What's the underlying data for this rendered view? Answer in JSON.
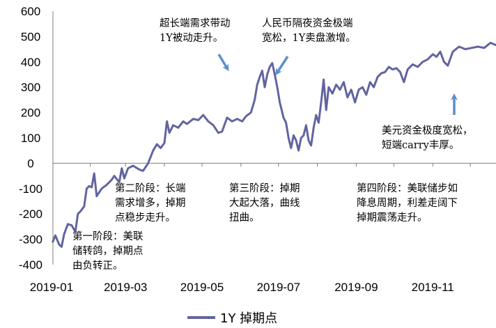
{
  "chart_data": {
    "type": "line",
    "title": "",
    "xlabel": "",
    "ylabel": "",
    "ylim": [
      -400,
      600
    ],
    "yticks": [
      "600",
      "500",
      "400",
      "300",
      "200",
      "100",
      "0",
      "-100",
      "-200",
      "-300",
      "-400"
    ],
    "xticks": [
      "2019-01",
      "2019-03",
      "2019-05",
      "2019-07",
      "2019-09",
      "2019-11"
    ],
    "grid": false,
    "legend_position": "bottom",
    "colors": {
      "series": "#6264a0",
      "arrow": "#5b8fcc",
      "axis": "#7f7f7f"
    },
    "series": [
      {
        "name": "1Y 掉期点",
        "points": [
          [
            "2019-01-02",
            -310
          ],
          [
            "2019-01-04",
            -285
          ],
          [
            "2019-01-07",
            -320
          ],
          [
            "2019-01-09",
            -330
          ],
          [
            "2019-01-11",
            -280
          ],
          [
            "2019-01-14",
            -240
          ],
          [
            "2019-01-17",
            -245
          ],
          [
            "2019-01-20",
            -270
          ],
          [
            "2019-01-22",
            -200
          ],
          [
            "2019-01-24",
            -190
          ],
          [
            "2019-01-27",
            -170
          ],
          [
            "2019-01-29",
            -100
          ],
          [
            "2019-01-31",
            -90
          ],
          [
            "2019-02-02",
            -95
          ],
          [
            "2019-02-04",
            -40
          ],
          [
            "2019-02-06",
            -130
          ],
          [
            "2019-02-10",
            -100
          ],
          [
            "2019-02-14",
            -85
          ],
          [
            "2019-02-18",
            -65
          ],
          [
            "2019-02-20",
            -50
          ],
          [
            "2019-02-24",
            -75
          ],
          [
            "2019-02-26",
            -20
          ],
          [
            "2019-02-28",
            -60
          ],
          [
            "2019-03-03",
            -20
          ],
          [
            "2019-03-07",
            -10
          ],
          [
            "2019-03-12",
            -25
          ],
          [
            "2019-03-15",
            -30
          ],
          [
            "2019-03-19",
            0
          ],
          [
            "2019-03-23",
            50
          ],
          [
            "2019-03-26",
            75
          ],
          [
            "2019-03-29",
            60
          ],
          [
            "2019-04-01",
            80
          ],
          [
            "2019-04-03",
            165
          ],
          [
            "2019-04-05",
            120
          ],
          [
            "2019-04-08",
            150
          ],
          [
            "2019-04-12",
            140
          ],
          [
            "2019-04-16",
            165
          ],
          [
            "2019-04-19",
            155
          ],
          [
            "2019-04-24",
            175
          ],
          [
            "2019-04-28",
            170
          ],
          [
            "2019-05-02",
            190
          ],
          [
            "2019-05-06",
            165
          ],
          [
            "2019-05-10",
            150
          ],
          [
            "2019-05-14",
            120
          ],
          [
            "2019-05-17",
            125
          ],
          [
            "2019-05-21",
            180
          ],
          [
            "2019-05-25",
            165
          ],
          [
            "2019-05-29",
            175
          ],
          [
            "2019-06-02",
            165
          ],
          [
            "2019-06-05",
            185
          ],
          [
            "2019-06-09",
            200
          ],
          [
            "2019-06-12",
            250
          ],
          [
            "2019-06-14",
            310
          ],
          [
            "2019-06-16",
            340
          ],
          [
            "2019-06-18",
            365
          ],
          [
            "2019-06-20",
            300
          ],
          [
            "2019-06-22",
            350
          ],
          [
            "2019-06-24",
            380
          ],
          [
            "2019-06-26",
            395
          ],
          [
            "2019-06-28",
            350
          ],
          [
            "2019-06-30",
            300
          ],
          [
            "2019-07-02",
            240
          ],
          [
            "2019-07-05",
            180
          ],
          [
            "2019-07-07",
            160
          ],
          [
            "2019-07-09",
            100
          ],
          [
            "2019-07-11",
            60
          ],
          [
            "2019-07-13",
            110
          ],
          [
            "2019-07-15",
            90
          ],
          [
            "2019-07-17",
            50
          ],
          [
            "2019-07-19",
            100
          ],
          [
            "2019-07-21",
            110
          ],
          [
            "2019-07-23",
            150
          ],
          [
            "2019-07-25",
            90
          ],
          [
            "2019-07-27",
            70
          ],
          [
            "2019-07-29",
            140
          ],
          [
            "2019-07-31",
            190
          ],
          [
            "2019-08-02",
            160
          ],
          [
            "2019-08-04",
            240
          ],
          [
            "2019-08-06",
            330
          ],
          [
            "2019-08-08",
            210
          ],
          [
            "2019-08-10",
            300
          ],
          [
            "2019-08-13",
            275
          ],
          [
            "2019-08-16",
            310
          ],
          [
            "2019-08-19",
            290
          ],
          [
            "2019-08-22",
            320
          ],
          [
            "2019-08-25",
            260
          ],
          [
            "2019-08-28",
            290
          ],
          [
            "2019-08-31",
            240
          ],
          [
            "2019-09-03",
            290
          ],
          [
            "2019-09-06",
            300
          ],
          [
            "2019-09-09",
            270
          ],
          [
            "2019-09-12",
            320
          ],
          [
            "2019-09-15",
            300
          ],
          [
            "2019-09-18",
            340
          ],
          [
            "2019-09-21",
            355
          ],
          [
            "2019-09-24",
            360
          ],
          [
            "2019-09-27",
            380
          ],
          [
            "2019-09-30",
            370
          ],
          [
            "2019-10-03",
            375
          ],
          [
            "2019-10-06",
            360
          ],
          [
            "2019-10-09",
            320
          ],
          [
            "2019-10-12",
            370
          ],
          [
            "2019-10-16",
            390
          ],
          [
            "2019-10-20",
            380
          ],
          [
            "2019-10-24",
            400
          ],
          [
            "2019-10-28",
            410
          ],
          [
            "2019-11-01",
            430
          ],
          [
            "2019-11-04",
            420
          ],
          [
            "2019-11-07",
            440
          ],
          [
            "2019-11-10",
            400
          ],
          [
            "2019-11-13",
            385
          ],
          [
            "2019-11-17",
            440
          ],
          [
            "2019-11-22",
            460
          ],
          [
            "2019-11-27",
            450
          ],
          [
            "2019-12-02",
            455
          ],
          [
            "2019-12-07",
            460
          ],
          [
            "2019-12-12",
            455
          ],
          [
            "2019-12-17",
            475
          ],
          [
            "2019-12-22",
            465
          ],
          [
            "2019-12-27",
            480
          ],
          [
            "2019-12-31",
            440
          ]
        ]
      }
    ],
    "annotations": [
      {
        "lines": [
          "超长端需求带动",
          "1Y被动走升。"
        ]
      },
      {
        "lines": [
          "人民币隔夜资金极端",
          "宽松，1Y卖盘激增。"
        ]
      },
      {
        "lines": [
          "美元资金极度宽松，",
          "短端carry丰厚。"
        ]
      },
      {
        "lines": [
          "第二阶段：长端",
          "需求增多，掉期",
          "点稳步走升。"
        ]
      },
      {
        "lines": [
          "第三阶段：掉期",
          "大起大落，曲线",
          "扭曲。"
        ]
      },
      {
        "lines": [
          "第四阶段：美联储步如",
          "降息周期，利差走阔下",
          "掉期震荡走升。"
        ]
      },
      {
        "lines": [
          "第一阶段：美联",
          "储转鸽，掉期点",
          "由负转正。"
        ]
      }
    ]
  }
}
